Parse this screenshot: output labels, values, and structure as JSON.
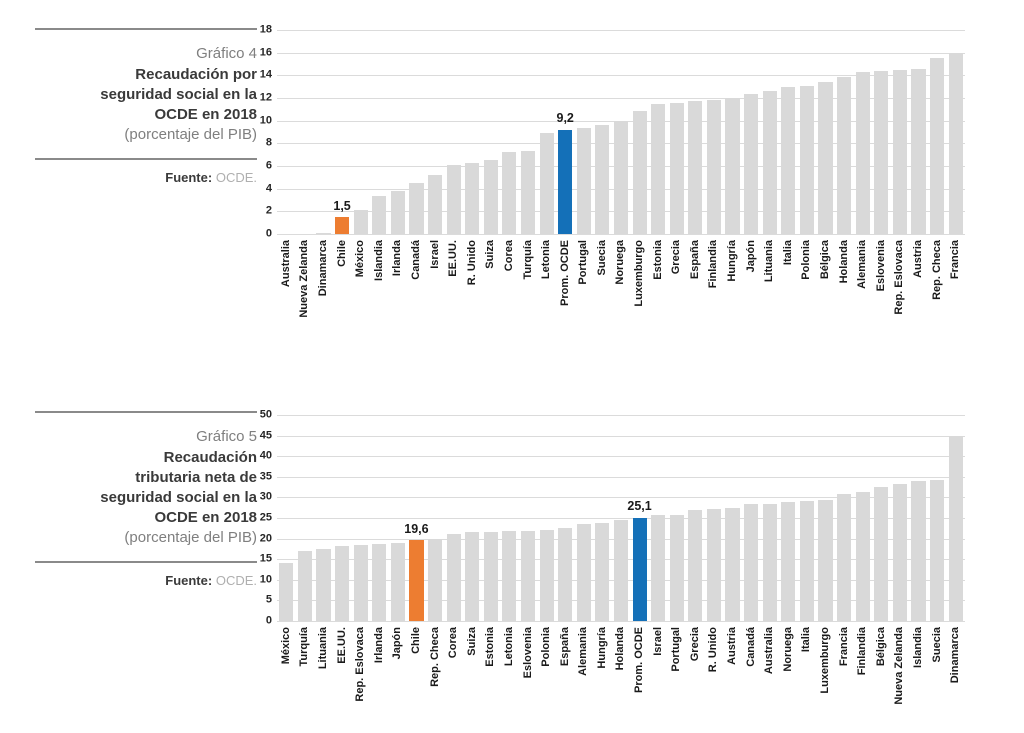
{
  "colors": {
    "background": "#FFFFFF",
    "bar_default": "#D9D9D9",
    "accent_orange": "#ED7D31",
    "accent_blue": "#1470B8",
    "gridline": "#DBDBDB",
    "caption_gray": "#7F7F7F",
    "title_dark": "#3A3A3A",
    "source_value_gray": "#AFAFAF"
  },
  "sections": [
    {
      "caption": {
        "number": "Gráfico 4",
        "title": "Recaudación por\nseguridad social en la\nOCDE en 2018",
        "subtitle": "(porcentaje del PIB)",
        "source_label": "Fuente:",
        "source_value": "OCDE."
      }
    },
    {
      "caption": {
        "number": "Gráfico 5",
        "title": "Recaudación\ntributaria neta de\nseguridad social en la\nOCDE en 2018",
        "subtitle": "(porcentaje del PIB)",
        "source_label": "Fuente:",
        "source_value": "OCDE."
      }
    }
  ],
  "chart_data": [
    {
      "type": "bar",
      "title": "Gráfico 4 — Recaudación por seguridad social en la OCDE en 2018 (porcentaje del PIB)",
      "xlabel": "",
      "ylabel": "",
      "ylim": [
        0,
        18
      ],
      "ytick_step": 2,
      "grid": true,
      "legend": false,
      "bar_color": "#D9D9D9",
      "categories": [
        "Australia",
        "Nueva Zelanda",
        "Dinamarca",
        "Chile",
        "México",
        "Islandia",
        "Irlanda",
        "Canadá",
        "Israel",
        "EE.UU.",
        "R. Unido",
        "Suiza",
        "Corea",
        "Turquía",
        "Letonia",
        "Prom. OCDE",
        "Portugal",
        "Suecia",
        "Noruega",
        "Luxemburgo",
        "Estonia",
        "Grecia",
        "España",
        "Finlandia",
        "Hungría",
        "Japón",
        "Lituania",
        "Italia",
        "Polonia",
        "Bélgica",
        "Holanda",
        "Alemania",
        "Eslovenia",
        "Rep. Eslovaca",
        "Austria",
        "Rep. Checa",
        "Francia"
      ],
      "values": [
        0,
        0,
        0.1,
        1.5,
        2.1,
        3.4,
        3.8,
        4.5,
        5.2,
        6.1,
        6.3,
        6.5,
        7.2,
        7.3,
        8.9,
        9.2,
        9.4,
        9.6,
        10,
        10.9,
        11.5,
        11.6,
        11.7,
        11.8,
        12,
        12.4,
        12.6,
        13,
        13.1,
        13.4,
        13.9,
        14.3,
        14.4,
        14.5,
        14.6,
        15.5,
        16
      ],
      "highlights": [
        {
          "category": "Chile",
          "label": "1,5",
          "color": "#ED7D31"
        },
        {
          "category": "Prom. OCDE",
          "label": "9,2",
          "color": "#1470B8"
        }
      ]
    },
    {
      "type": "bar",
      "title": "Gráfico 5 — Recaudación tributaria neta de seguridad social en la OCDE en 2018 (porcentaje del PIB)",
      "xlabel": "",
      "ylabel": "",
      "ylim": [
        0,
        50
      ],
      "ytick_step": 5,
      "grid": true,
      "legend": false,
      "bar_color": "#D9D9D9",
      "categories": [
        "México",
        "Turquía",
        "Lituania",
        "EE.UU.",
        "Rep. Eslovaca",
        "Irlanda",
        "Japón",
        "Chile",
        "Rep. Checa",
        "Corea",
        "Suiza",
        "Estonia",
        "Letonia",
        "Eslovenia",
        "Polonia",
        "España",
        "Alemania",
        "Hungría",
        "Holanda",
        "Prom. OCDE",
        "Israel",
        "Portugal",
        "Grecia",
        "R. Unido",
        "Austria",
        "Canadá",
        "Australia",
        "Noruega",
        "Italia",
        "Luxemburgo",
        "Francia",
        "Finlandia",
        "Bélgica",
        "Nueva Zelanda",
        "Islandia",
        "Suecia",
        "Dinamarca"
      ],
      "values": [
        14,
        17.1,
        17.5,
        18.2,
        18.5,
        18.6,
        19,
        19.6,
        19.8,
        21.2,
        21.5,
        21.7,
        21.8,
        21.9,
        22,
        22.6,
        23.5,
        23.7,
        24.6,
        25.1,
        25.7,
        25.8,
        27,
        27.2,
        27.4,
        28.4,
        28.5,
        29,
        29.1,
        29.3,
        30.8,
        31.3,
        32.5,
        33.3,
        34.1,
        34.3,
        44.9
      ],
      "highlights": [
        {
          "category": "Chile",
          "label": "19,6",
          "color": "#ED7D31"
        },
        {
          "category": "Prom. OCDE",
          "label": "25,1",
          "color": "#1470B8"
        }
      ]
    }
  ]
}
